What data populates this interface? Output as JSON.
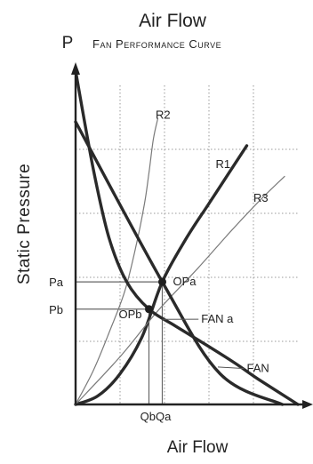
{
  "chart_data": {
    "type": "line",
    "title": "Air Flow",
    "subtitle": "Fan Performance Curve",
    "y_axis_symbol": "P",
    "xlabel": "Air Flow",
    "ylabel": "Static Pressure",
    "xlim": [
      0,
      10
    ],
    "ylim": [
      0,
      10
    ],
    "grid": true,
    "y_ticks": [
      {
        "label": "Pa",
        "value": 3.6
      },
      {
        "label": "Pb",
        "value": 2.8
      }
    ],
    "x_ticks": [
      {
        "label": "Qb",
        "value": 3.3
      },
      {
        "label": "Qa",
        "value": 3.9
      }
    ],
    "series": [
      {
        "name": "R1",
        "style": "bold",
        "x": [
          0,
          1,
          2,
          3,
          3.9,
          5,
          6,
          7,
          7.7
        ],
        "y": [
          0,
          0.25,
          0.9,
          2.0,
          3.6,
          4.9,
          5.9,
          6.9,
          7.6
        ]
      },
      {
        "name": "R2",
        "style": "thin",
        "x": [
          0,
          0.8,
          1.5,
          2.2,
          2.7,
          3.1,
          3.3,
          3.5,
          3.7
        ],
        "y": [
          0,
          1.0,
          2.1,
          3.3,
          4.6,
          5.9,
          6.8,
          7.8,
          8.4
        ]
      },
      {
        "name": "R3",
        "style": "thin",
        "x": [
          0,
          2,
          3.7,
          5.5,
          7,
          8.3,
          9.4
        ],
        "y": [
          0,
          1.4,
          2.75,
          4.0,
          5.1,
          6.0,
          6.7
        ]
      },
      {
        "name": "FAN a",
        "style": "bold",
        "x": [
          0,
          3.9,
          6.5,
          9.3
        ],
        "y": [
          8.3,
          3.6,
          0.9,
          0
        ]
      },
      {
        "name": "FAN b",
        "style": "bold",
        "x": [
          0,
          0.8,
          1.5,
          2.3,
          3.3,
          4.5,
          6.0,
          7.2,
          8.2,
          10
        ],
        "y": [
          9.8,
          6.9,
          4.9,
          3.6,
          2.8,
          2.3,
          1.7,
          1.2,
          0.75,
          0
        ]
      }
    ],
    "curve_labels": [
      {
        "text": "R2",
        "series": "R2",
        "x": 3.6,
        "y": 8.4
      },
      {
        "text": "R1",
        "series": "R1",
        "x": 6.3,
        "y": 6.95
      },
      {
        "text": "R3",
        "series": "R3",
        "x": 8.0,
        "y": 5.95
      },
      {
        "text": "FAN  a",
        "series": "FAN a",
        "x": 5.65,
        "y": 2.4,
        "leader_to": [
          3.9,
          2.5
        ]
      },
      {
        "text": "FAN",
        "series": "FAN b",
        "x": 7.7,
        "y": 0.95,
        "leader_to": [
          6.4,
          1.1
        ]
      }
    ],
    "operating_points": [
      {
        "label": "OPa",
        "x": 3.9,
        "y": 3.6
      },
      {
        "label": "OPb",
        "x": 3.3,
        "y": 2.8
      }
    ]
  }
}
